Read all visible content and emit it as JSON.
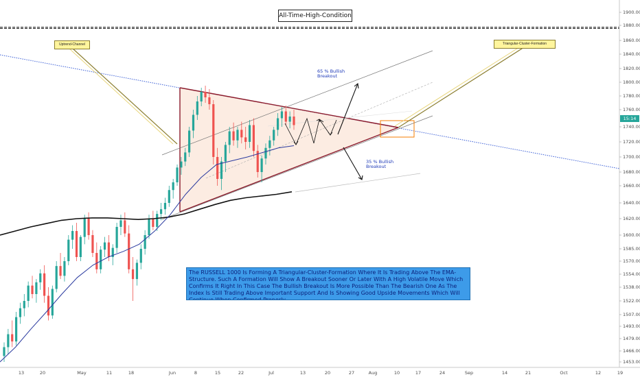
{
  "chart_data": {
    "type": "candlestick",
    "title": "All-Time-High-Condition",
    "y_axis_ticks": [
      "1900.00",
      "1880.00",
      "1860.00",
      "1840.00",
      "1820.00",
      "1800.00",
      "1780.00",
      "1760.00",
      "1740.00",
      "1720.00",
      "1700.00",
      "1680.00",
      "1660.00",
      "1640.00",
      "1620.00",
      "1600.00",
      "1585.00",
      "1570.00",
      "1554.00",
      "1538.00",
      "1522.00",
      "1507.00",
      "1493.00",
      "1479.00",
      "1466.00",
      "1453.00"
    ],
    "x_axis_ticks": [
      "13",
      "20",
      "May",
      "11",
      "18",
      "Jun",
      "8",
      "15",
      "22",
      "Jul",
      "13",
      "20",
      "27",
      "Aug",
      "10",
      "17",
      "24",
      "Sep",
      "14",
      "21",
      "Oct",
      "12",
      "19"
    ],
    "current_price_label": "15:14",
    "annotations": {
      "uptrend_channel": "Uptrend-Channel",
      "triangle": "Triangular-Cluster-Formation",
      "bullish_up": "65 % Bullish Breakout",
      "bullish_down": "35 % Bullish Breakout"
    },
    "note": "The RUSSELL 1000 Is Forming A Triangular-Cluster-Formation Where It Is Trading Above The EMA-Structure. Such A Formation Will Show A Breakout Sooner Or Later With A High Volatile Move Which Confirms It Right In This Case The Bullish Breakout Is More Possible Than The Bearish One As The Index Is Still Trading Above Important Support And Is Showing Good Upside Movements Which Will Continue When Confirmed Properly",
    "candles": [
      [
        1460,
        1475,
        1450,
        1470
      ],
      [
        1470,
        1490,
        1462,
        1484
      ],
      [
        1484,
        1500,
        1470,
        1476
      ],
      [
        1476,
        1510,
        1472,
        1504
      ],
      [
        1504,
        1520,
        1496,
        1514
      ],
      [
        1514,
        1530,
        1505,
        1522
      ],
      [
        1522,
        1545,
        1515,
        1540
      ],
      [
        1540,
        1552,
        1525,
        1530
      ],
      [
        1530,
        1548,
        1520,
        1544
      ],
      [
        1544,
        1560,
        1535,
        1555
      ],
      [
        1555,
        1565,
        1520,
        1528
      ],
      [
        1528,
        1538,
        1500,
        1506
      ],
      [
        1506,
        1540,
        1502,
        1536
      ],
      [
        1536,
        1570,
        1532,
        1564
      ],
      [
        1564,
        1580,
        1548,
        1552
      ],
      [
        1552,
        1575,
        1545,
        1570
      ],
      [
        1570,
        1600,
        1565,
        1595
      ],
      [
        1595,
        1612,
        1585,
        1605
      ],
      [
        1605,
        1615,
        1570,
        1575
      ],
      [
        1575,
        1600,
        1570,
        1598
      ],
      [
        1598,
        1625,
        1590,
        1620
      ],
      [
        1620,
        1628,
        1595,
        1600
      ],
      [
        1600,
        1606,
        1575,
        1580
      ],
      [
        1580,
        1592,
        1555,
        1560
      ],
      [
        1560,
        1588,
        1555,
        1584
      ],
      [
        1584,
        1598,
        1575,
        1592
      ],
      [
        1592,
        1600,
        1570,
        1575
      ],
      [
        1575,
        1590,
        1565,
        1586
      ],
      [
        1586,
        1615,
        1580,
        1610
      ],
      [
        1610,
        1625,
        1600,
        1618
      ],
      [
        1618,
        1628,
        1598,
        1602
      ],
      [
        1602,
        1612,
        1555,
        1560
      ],
      [
        1560,
        1575,
        1522,
        1548
      ],
      [
        1548,
        1572,
        1540,
        1568
      ],
      [
        1568,
        1590,
        1560,
        1585
      ],
      [
        1585,
        1606,
        1578,
        1600
      ],
      [
        1600,
        1625,
        1596,
        1620
      ],
      [
        1620,
        1630,
        1606,
        1610
      ],
      [
        1610,
        1630,
        1605,
        1626
      ],
      [
        1626,
        1640,
        1618,
        1632
      ],
      [
        1632,
        1646,
        1625,
        1640
      ],
      [
        1640,
        1660,
        1635,
        1655
      ],
      [
        1655,
        1670,
        1645,
        1665
      ],
      [
        1665,
        1690,
        1660,
        1686
      ],
      [
        1686,
        1700,
        1676,
        1694
      ],
      [
        1694,
        1712,
        1688,
        1706
      ],
      [
        1706,
        1740,
        1700,
        1735
      ],
      [
        1735,
        1760,
        1725,
        1754
      ],
      [
        1754,
        1780,
        1748,
        1772
      ],
      [
        1772,
        1792,
        1765,
        1786
      ],
      [
        1786,
        1795,
        1770,
        1778
      ],
      [
        1778,
        1790,
        1760,
        1768
      ],
      [
        1768,
        1774,
        1690,
        1700
      ],
      [
        1700,
        1712,
        1660,
        1670
      ],
      [
        1670,
        1700,
        1655,
        1694
      ],
      [
        1694,
        1720,
        1680,
        1716
      ],
      [
        1716,
        1740,
        1705,
        1734
      ],
      [
        1734,
        1745,
        1715,
        1722
      ],
      [
        1722,
        1740,
        1712,
        1736
      ],
      [
        1736,
        1746,
        1718,
        1726
      ],
      [
        1726,
        1740,
        1710,
        1720
      ],
      [
        1720,
        1748,
        1712,
        1742
      ],
      [
        1742,
        1750,
        1700,
        1708
      ],
      [
        1708,
        1716,
        1672,
        1680
      ],
      [
        1680,
        1702,
        1665,
        1698
      ],
      [
        1698,
        1718,
        1690,
        1712
      ],
      [
        1712,
        1728,
        1702,
        1722
      ],
      [
        1722,
        1740,
        1715,
        1736
      ],
      [
        1736,
        1756,
        1728,
        1750
      ],
      [
        1750,
        1764,
        1740,
        1758
      ],
      [
        1758,
        1766,
        1742,
        1746
      ],
      [
        1746,
        1758,
        1738,
        1752
      ],
      [
        1752,
        1760,
        1736,
        1742
      ]
    ],
    "ema_long": [
      1600,
      1605,
      1610,
      1614,
      1618,
      1620,
      1621,
      1621,
      1620,
      1619,
      1620,
      1622,
      1626,
      1632,
      1638,
      1643,
      1646,
      1648,
      1650,
      1653
    ],
    "ema_short": [
      1453,
      1470,
      1490,
      1510,
      1530,
      1550,
      1565,
      1575,
      1582,
      1590,
      1605,
      1625,
      1650,
      1672,
      1690,
      1695,
      1700,
      1706,
      1712,
      1715
    ]
  }
}
